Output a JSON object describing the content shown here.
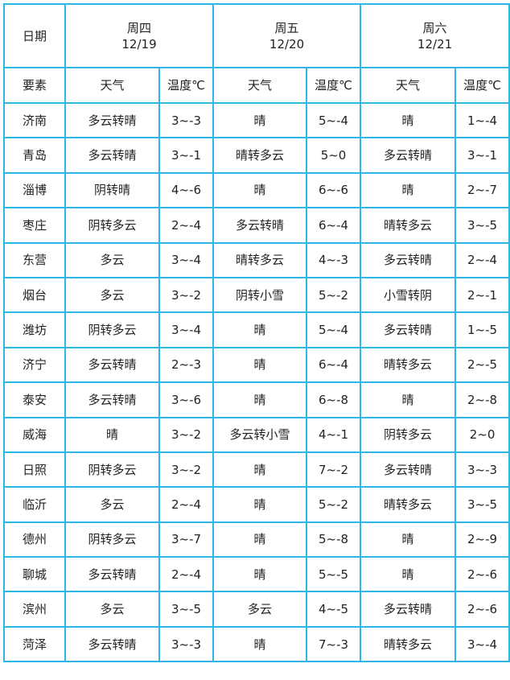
{
  "header": {
    "date_label": "日期",
    "days": [
      {
        "weekday": "周四",
        "date": "12/19"
      },
      {
        "weekday": "周五",
        "date": "12/20"
      },
      {
        "weekday": "周六",
        "date": "12/21"
      }
    ],
    "element_label": "要素",
    "weather_label": "天气",
    "temp_label": "温度℃"
  },
  "border_color": "#2cb7e6",
  "rows": [
    {
      "city": "济南",
      "d": [
        [
          "多云转晴",
          "3~-3"
        ],
        [
          "晴",
          "5~-4"
        ],
        [
          "晴",
          "1~-4"
        ]
      ]
    },
    {
      "city": "青岛",
      "d": [
        [
          "多云转晴",
          "3~-1"
        ],
        [
          "晴转多云",
          "5~0"
        ],
        [
          "多云转晴",
          "3~-1"
        ]
      ]
    },
    {
      "city": "淄博",
      "d": [
        [
          "阴转晴",
          "4~-6"
        ],
        [
          "晴",
          "6~-6"
        ],
        [
          "晴",
          "2~-7"
        ]
      ]
    },
    {
      "city": "枣庄",
      "d": [
        [
          "阴转多云",
          "2~-4"
        ],
        [
          "多云转晴",
          "6~-4"
        ],
        [
          "晴转多云",
          "3~-5"
        ]
      ]
    },
    {
      "city": "东营",
      "d": [
        [
          "多云",
          "3~-4"
        ],
        [
          "晴转多云",
          "4~-3"
        ],
        [
          "多云转晴",
          "2~-4"
        ]
      ]
    },
    {
      "city": "烟台",
      "d": [
        [
          "多云",
          "3~-2"
        ],
        [
          "阴转小雪",
          "5~-2"
        ],
        [
          "小雪转阴",
          "2~-1"
        ]
      ]
    },
    {
      "city": "潍坊",
      "d": [
        [
          "阴转多云",
          "3~-4"
        ],
        [
          "晴",
          "5~-4"
        ],
        [
          "多云转晴",
          "1~-5"
        ]
      ]
    },
    {
      "city": "济宁",
      "d": [
        [
          "多云转晴",
          "2~-3"
        ],
        [
          "晴",
          "6~-4"
        ],
        [
          "晴转多云",
          "2~-5"
        ]
      ]
    },
    {
      "city": "泰安",
      "d": [
        [
          "多云转晴",
          "3~-6"
        ],
        [
          "晴",
          "6~-8"
        ],
        [
          "晴",
          "2~-8"
        ]
      ]
    },
    {
      "city": "威海",
      "d": [
        [
          "晴",
          "3~-2"
        ],
        [
          "多云转小雪",
          "4~-1"
        ],
        [
          "阴转多云",
          "2~0"
        ]
      ]
    },
    {
      "city": "日照",
      "d": [
        [
          "阴转多云",
          "3~-2"
        ],
        [
          "晴",
          "7~-2"
        ],
        [
          "多云转晴",
          "3~-3"
        ]
      ]
    },
    {
      "city": "临沂",
      "d": [
        [
          "多云",
          "2~-4"
        ],
        [
          "晴",
          "5~-2"
        ],
        [
          "晴转多云",
          "3~-5"
        ]
      ]
    },
    {
      "city": "德州",
      "d": [
        [
          "阴转多云",
          "3~-7"
        ],
        [
          "晴",
          "5~-8"
        ],
        [
          "晴",
          "2~-9"
        ]
      ]
    },
    {
      "city": "聊城",
      "d": [
        [
          "多云转晴",
          "2~-4"
        ],
        [
          "晴",
          "5~-5"
        ],
        [
          "晴",
          "2~-6"
        ]
      ]
    },
    {
      "city": "滨州",
      "d": [
        [
          "多云",
          "3~-5"
        ],
        [
          "多云",
          "4~-5"
        ],
        [
          "多云转晴",
          "2~-6"
        ]
      ]
    },
    {
      "city": "菏泽",
      "d": [
        [
          "多云转晴",
          "3~-3"
        ],
        [
          "晴",
          "7~-3"
        ],
        [
          "晴转多云",
          "3~-4"
        ]
      ]
    }
  ]
}
